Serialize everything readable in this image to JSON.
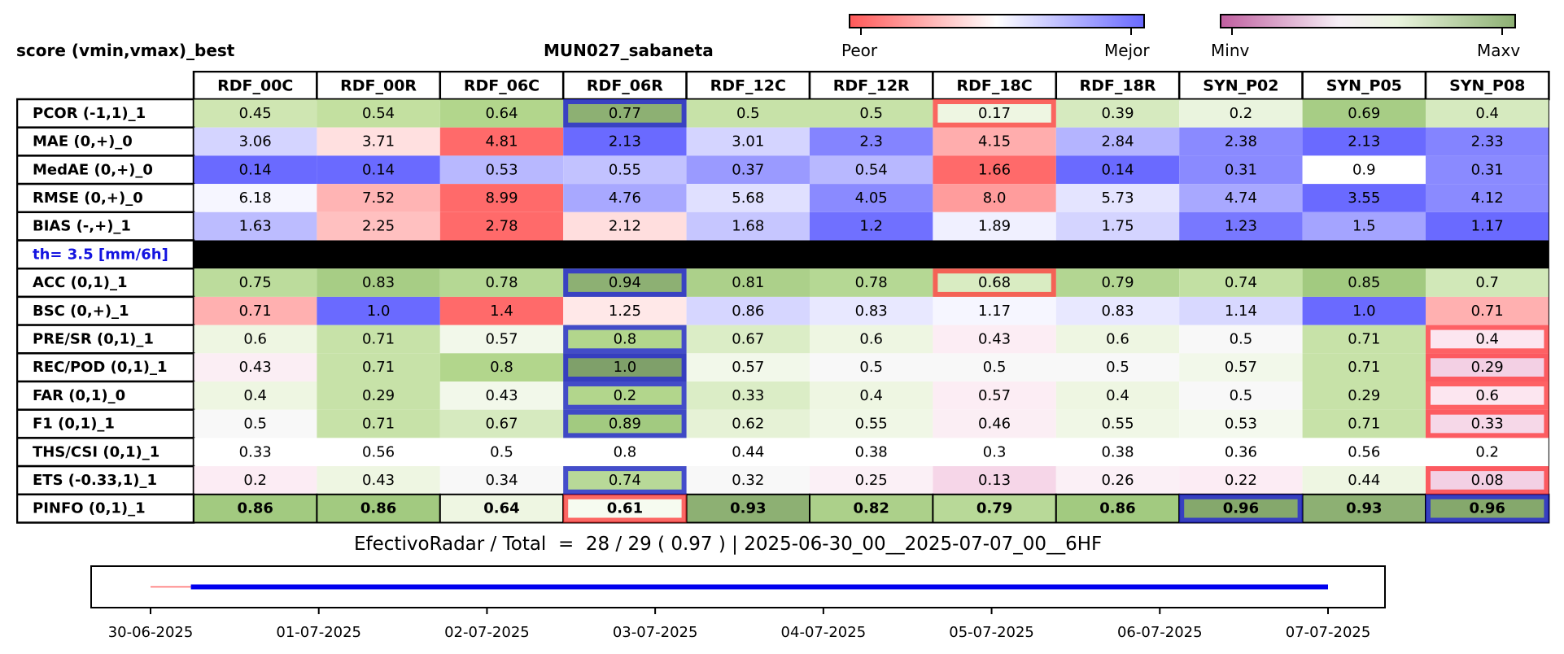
{
  "header": {
    "score_label": "score (vmin,vmax)_best",
    "station": "MUN027_sabaneta"
  },
  "legend": {
    "scale1": {
      "min_label": "Peor",
      "max_label": "Mejor",
      "colors": [
        "#ff5a5a",
        "#ffffff",
        "#6a6aff"
      ]
    },
    "scale2": {
      "min_label": "Minv",
      "max_label": "Maxv",
      "colors": [
        "#c060a0",
        "#f6eef6",
        "#8db073"
      ]
    }
  },
  "chart_data": {
    "type": "heatmap",
    "columns": [
      "RDF_00C",
      "RDF_00R",
      "RDF_06C",
      "RDF_06R",
      "RDF_12C",
      "RDF_12R",
      "RDF_18C",
      "RDF_18R",
      "SYN_P02",
      "SYN_P05",
      "SYN_P08"
    ],
    "threshold_label": "th= 3.5 [mm/6h]",
    "rows": [
      {
        "label": "PCOR (-1,1)_1",
        "values": [
          "0.45",
          "0.54",
          "0.64",
          "0.77",
          "0.5",
          "0.5",
          "0.17",
          "0.39",
          "0.2",
          "0.69",
          "0.4"
        ],
        "colors": [
          "#cfe6b2",
          "#c3e0a0",
          "#b2d68c",
          "#8db073",
          "#c7e2a8",
          "#c7e2a8",
          "#eef6e2",
          "#d6eabf",
          "#eaf4de",
          "#a7cd85",
          "#d6eabf"
        ],
        "best": [
          3
        ],
        "worst": [
          6
        ]
      },
      {
        "label": "MAE (0,+)_0",
        "values": [
          "3.06",
          "3.71",
          "4.81",
          "2.13",
          "3.01",
          "2.3",
          "4.15",
          "2.84",
          "2.38",
          "2.13",
          "2.33"
        ],
        "colors": [
          "#d4d4ff",
          "#ffe0e0",
          "#ff6a6a",
          "#6a6aff",
          "#d4d4ff",
          "#8484ff",
          "#ffadad",
          "#b4b4ff",
          "#8a8aff",
          "#6a6aff",
          "#8484ff"
        ],
        "best": [],
        "worst": []
      },
      {
        "label": "MedAE (0,+)_0",
        "values": [
          "0.14",
          "0.14",
          "0.53",
          "0.55",
          "0.37",
          "0.54",
          "1.66",
          "0.14",
          "0.31",
          "0.9",
          "0.31"
        ],
        "colors": [
          "#6a6aff",
          "#6a6aff",
          "#b8b8ff",
          "#c2c2ff",
          "#9a9aff",
          "#b8b8ff",
          "#ff6a6a",
          "#6a6aff",
          "#8a8aff",
          "#ffffff",
          "#8a8aff"
        ],
        "best": [],
        "worst": []
      },
      {
        "label": "RMSE (0,+)_0",
        "values": [
          "6.18",
          "7.52",
          "8.99",
          "4.76",
          "5.68",
          "4.05",
          "8.0",
          "5.73",
          "4.74",
          "3.55",
          "4.12"
        ],
        "colors": [
          "#f6f6ff",
          "#ffb4b4",
          "#ff6a6a",
          "#a8a8ff",
          "#e0e0ff",
          "#8a8aff",
          "#ff9c9c",
          "#e4e4ff",
          "#a8a8ff",
          "#6a6aff",
          "#8a8aff"
        ],
        "best": [],
        "worst": []
      },
      {
        "label": "BIAS (-,+)_1",
        "values": [
          "1.63",
          "2.25",
          "2.78",
          "2.12",
          "1.68",
          "1.2",
          "1.89",
          "1.75",
          "1.23",
          "1.5",
          "1.17"
        ],
        "colors": [
          "#bcbcff",
          "#ffc0c0",
          "#ff6a6a",
          "#ffdede",
          "#c6c6ff",
          "#7070ff",
          "#f0f0ff",
          "#d4d4ff",
          "#7878ff",
          "#a4a4ff",
          "#6a6aff"
        ],
        "best": [],
        "worst": []
      },
      {
        "label": "ACC (0,1)_1",
        "values": [
          "0.75",
          "0.83",
          "0.78",
          "0.94",
          "0.81",
          "0.78",
          "0.68",
          "0.79",
          "0.74",
          "0.85",
          "0.7"
        ],
        "colors": [
          "#bcdc9c",
          "#a7cd85",
          "#b5d894",
          "#8db073",
          "#acd08a",
          "#b5d894",
          "#d9ecc2",
          "#b3d692",
          "#c2e0a3",
          "#a2ca80",
          "#d1e8b8"
        ],
        "best": [
          3
        ],
        "worst": [
          6
        ]
      },
      {
        "label": "BSC (0,+)_1",
        "values": [
          "0.71",
          "1.0",
          "1.4",
          "1.25",
          "0.86",
          "0.83",
          "1.17",
          "0.83",
          "1.14",
          "1.0",
          "0.71"
        ],
        "colors": [
          "#ffb0b0",
          "#6a6aff",
          "#ff6a6a",
          "#ffe8e8",
          "#d6d6ff",
          "#e8e8ff",
          "#f6f6ff",
          "#e8e8ff",
          "#d8d8ff",
          "#6a6aff",
          "#ffb0b0"
        ],
        "best": [],
        "worst": []
      },
      {
        "label": "PRE/SR (0,1)_1",
        "values": [
          "0.6",
          "0.71",
          "0.57",
          "0.8",
          "0.67",
          "0.6",
          "0.43",
          "0.6",
          "0.5",
          "0.71",
          "0.4"
        ],
        "colors": [
          "#eef6e2",
          "#c7e2a8",
          "#f2f8ea",
          "#b2d68c",
          "#dbedc6",
          "#eef6e2",
          "#fcedf4",
          "#eef6e2",
          "#f8f8f8",
          "#c7e2a8",
          "#fce6f0"
        ],
        "best": [
          3
        ],
        "worst": [
          10
        ]
      },
      {
        "label": "REC/POD (0,1)_1",
        "values": [
          "0.43",
          "0.71",
          "0.8",
          "1.0",
          "0.57",
          "0.5",
          "0.5",
          "0.5",
          "0.57",
          "0.71",
          "0.29"
        ],
        "colors": [
          "#fbeef4",
          "#c7e2a8",
          "#b2d68c",
          "#7fa06a",
          "#f2f8ea",
          "#f8f8f8",
          "#f8f8f8",
          "#f8f8f8",
          "#f2f8ea",
          "#c7e2a8",
          "#f3d0e4"
        ],
        "best": [
          3
        ],
        "worst": [
          10
        ]
      },
      {
        "label": "FAR (0,1)_0",
        "values": [
          "0.4",
          "0.29",
          "0.43",
          "0.2",
          "0.33",
          "0.4",
          "0.57",
          "0.4",
          "0.5",
          "0.29",
          "0.6"
        ],
        "colors": [
          "#eef6e2",
          "#c7e2a8",
          "#f2f8ea",
          "#b2d68c",
          "#dbedc6",
          "#eef6e2",
          "#fcedf4",
          "#eef6e2",
          "#f8f8f8",
          "#c7e2a8",
          "#fce6f0"
        ],
        "best": [
          3
        ],
        "worst": [
          10
        ]
      },
      {
        "label": "F1 (0,1)_1",
        "values": [
          "0.5",
          "0.71",
          "0.67",
          "0.89",
          "0.62",
          "0.55",
          "0.46",
          "0.55",
          "0.53",
          "0.71",
          "0.33"
        ],
        "colors": [
          "#f8f8f8",
          "#c7e2a8",
          "#d6eabf",
          "#a2ca80",
          "#e6f2d6",
          "#f0f7e6",
          "#fbeef4",
          "#f0f7e6",
          "#f4f9ee",
          "#c7e2a8",
          "#f6d8e8"
        ],
        "best": [
          3
        ],
        "worst": [
          10
        ]
      },
      {
        "label": "THS/CSI (0,1)_1",
        "values": [
          "0.33",
          "0.56",
          "0.5",
          "0.8",
          "0.44",
          "0.38",
          "0.3",
          "0.38",
          "0.36",
          "0.56",
          "0.2"
        ],
        "colors": [
          "#ffffff",
          "#ffffff",
          "#ffffff",
          "#ffffff",
          "#ffffff",
          "#ffffff",
          "#ffffff",
          "#ffffff",
          "#ffffff",
          "#ffffff",
          "#ffffff"
        ],
        "best": [],
        "worst": []
      },
      {
        "label": "ETS (-0.33,1)_1",
        "values": [
          "0.2",
          "0.43",
          "0.34",
          "0.74",
          "0.32",
          "0.25",
          "0.13",
          "0.26",
          "0.22",
          "0.44",
          "0.08"
        ],
        "colors": [
          "#fcecf4",
          "#eef6e2",
          "#f8f8f8",
          "#b8d998",
          "#f8f8f8",
          "#fbf0f6",
          "#f6d6e8",
          "#fbf0f6",
          "#fcecf4",
          "#eef6e2",
          "#f3d0e4"
        ],
        "best": [
          3
        ],
        "worst": [
          10
        ]
      },
      {
        "label": "PINFO (0,1)_1",
        "values": [
          "0.86",
          "0.86",
          "0.64",
          "0.61",
          "0.93",
          "0.82",
          "0.79",
          "0.86",
          "0.96",
          "0.93",
          "0.96"
        ],
        "colors": [
          "#a2ca80",
          "#a2ca80",
          "#eef6e2",
          "#f6fbf0",
          "#8db073",
          "#acd08a",
          "#b8d998",
          "#a2ca80",
          "#85a86c",
          "#8db073",
          "#85a86c"
        ],
        "best": [
          8,
          10
        ],
        "worst": [
          3
        ]
      }
    ],
    "threshold_after_row": 4,
    "timeline": {
      "x_ticks": [
        "30-06-2025",
        "01-07-2025",
        "02-07-2025",
        "03-07-2025",
        "04-07-2025",
        "05-07-2025",
        "06-07-2025",
        "07-07-2025"
      ],
      "start": "30-06-2025",
      "end": "07-07-2025",
      "valid_start_day_fraction": 0.24,
      "valid_color": "#0000ee",
      "missing_color": "#ff6a6a"
    }
  },
  "summary_text": "EfectivoRadar / Total  =  28 / 29 ( 0.97 ) | 2025-06-30_00__2025-07-07_00__6HF"
}
